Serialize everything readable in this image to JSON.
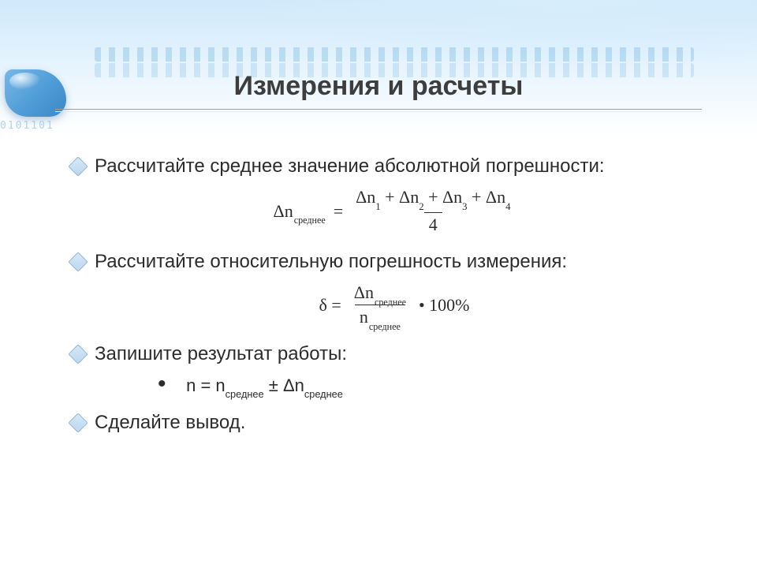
{
  "title": "Измерения и расчеты",
  "bullet_color": "#bcd7ef",
  "bullet_border": "#8fb4d6",
  "text_color": "#2c2c2c",
  "title_color": "#3d3d3d",
  "items": {
    "i1": "Рассчитайте среднее значение абсолютной погрешности:",
    "i2": "Рассчитайте относительную погрешность измерения:",
    "i3": "Запишите результат работы:",
    "i4": "Сделайте вывод."
  },
  "formula1": {
    "lhs_sym": "Δn",
    "lhs_sub": "среднее",
    "eq": "=",
    "num_parts": [
      "Δn",
      "1",
      " + Δn",
      "2",
      " + Δn",
      "3",
      " + Δn",
      "4"
    ],
    "den": "4"
  },
  "formula2": {
    "lhs": "δ =",
    "num_sym": "Δn",
    "num_sub": "среднее",
    "den_sym": "n",
    "den_sub": "среднее",
    "tail": "• 100%"
  },
  "result": {
    "prefix": "n = n",
    "sub1": "среднее",
    "pm": " ± ",
    "delta": "Δn",
    "sub2": "среднее"
  },
  "deco_digits": "0101101"
}
